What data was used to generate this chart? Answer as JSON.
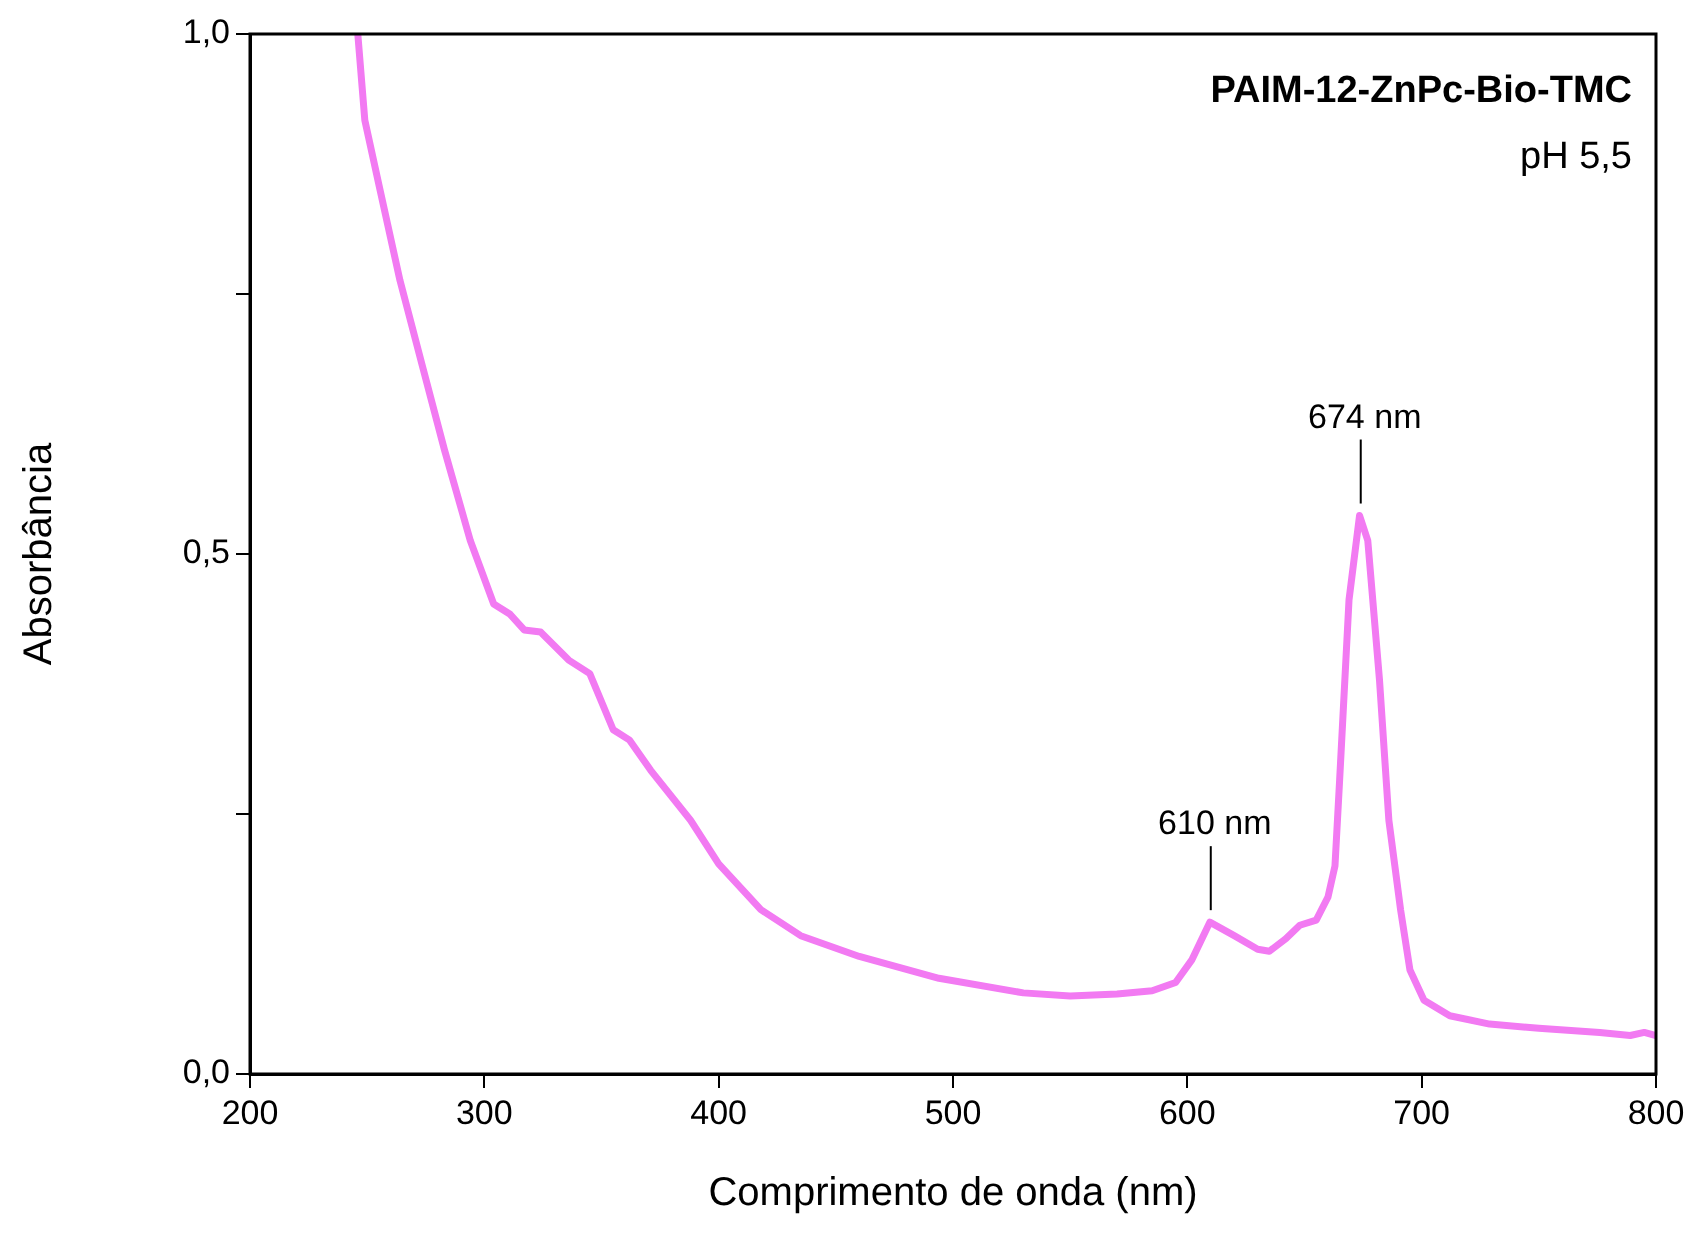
{
  "chart_data": {
    "type": "line",
    "title": "PAIM-12-ZnPc-Bio-TMC",
    "xlabel": "Comprimento de onda (nm)",
    "ylabel": "Absorbância",
    "annotations": [
      "pH 5,5",
      {
        "text": "610 nm",
        "x": 610,
        "y": 0.146
      },
      {
        "text": "674 nm",
        "x": 674,
        "y": 0.537
      }
    ],
    "xlim": [
      200,
      800
    ],
    "xticks": [
      200,
      300,
      400,
      500,
      600,
      700,
      800
    ],
    "ylim": [
      0,
      1
    ],
    "yticks": [
      {
        "value": 0,
        "label": "0,0"
      },
      {
        "value": 0.25,
        "label": null
      },
      {
        "value": 0.5,
        "label": "0,5"
      },
      {
        "value": 0.75,
        "label": null
      },
      {
        "value": 1,
        "label": "1,0"
      }
    ],
    "marker": "none",
    "legend": false,
    "series": [
      {
        "color": "#f27af2",
        "x": [
          246,
          249,
          255.5,
          264,
          274,
          283,
          294,
          304,
          311,
          317,
          324,
          336,
          345,
          355,
          362,
          371,
          388,
          400,
          418,
          435,
          460,
          494,
          530,
          550,
          570,
          585,
          595,
          602,
          609.6,
          620,
          630,
          635,
          642,
          648,
          655,
          660,
          663,
          665,
          669,
          673.5,
          677,
          682,
          686,
          691,
          695,
          701,
          712,
          729,
          750,
          776,
          789,
          795,
          800
        ],
        "values": [
          1.0,
          0.917,
          0.85,
          0.763,
          0.677,
          0.6,
          0.513,
          0.452,
          0.442,
          0.427,
          0.425,
          0.398,
          0.385,
          0.331,
          0.321,
          0.292,
          0.244,
          0.202,
          0.158,
          0.133,
          0.113,
          0.092,
          0.078,
          0.075,
          0.077,
          0.08,
          0.088,
          0.11,
          0.146,
          0.133,
          0.12,
          0.118,
          0.13,
          0.143,
          0.148,
          0.17,
          0.2,
          0.283,
          0.456,
          0.537,
          0.513,
          0.379,
          0.244,
          0.158,
          0.1,
          0.071,
          0.056,
          0.048,
          0.044,
          0.04,
          0.037,
          0.04,
          0.037
        ]
      }
    ]
  }
}
